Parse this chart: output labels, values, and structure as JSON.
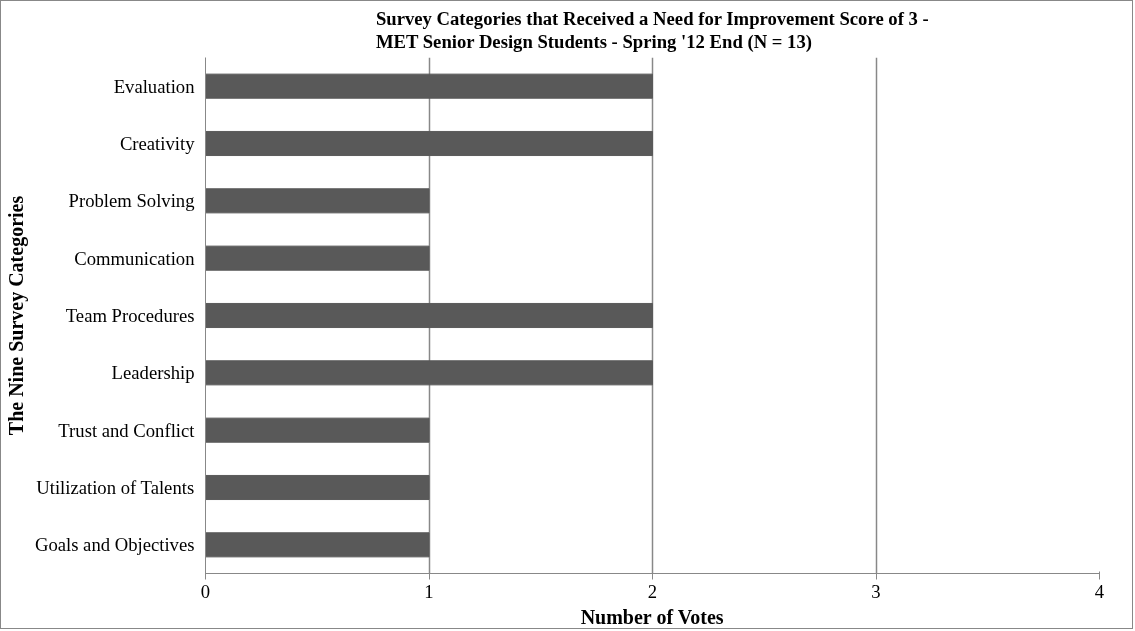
{
  "chart_data": {
    "type": "bar",
    "orientation": "horizontal",
    "title": "Survey Categories that Received a Need for Improvement Score of 3 -\nMET Senior Design Students - Spring '12 End (N = 13)",
    "xlabel": "Number of Votes",
    "ylabel": "The Nine Survey Categories",
    "categories": [
      "Evaluation",
      "Creativity",
      "Problem Solving",
      "Communication",
      "Team Procedures",
      "Leadership",
      "Trust and Conflict",
      "Utilization of Talents",
      "Goals and Objectives"
    ],
    "values": [
      2,
      2,
      1,
      1,
      2,
      2,
      1,
      1,
      1
    ],
    "color": "#595959",
    "xlim": [
      0,
      4
    ],
    "xticks": [
      0,
      1,
      2,
      3,
      4
    ],
    "grid": "x"
  }
}
